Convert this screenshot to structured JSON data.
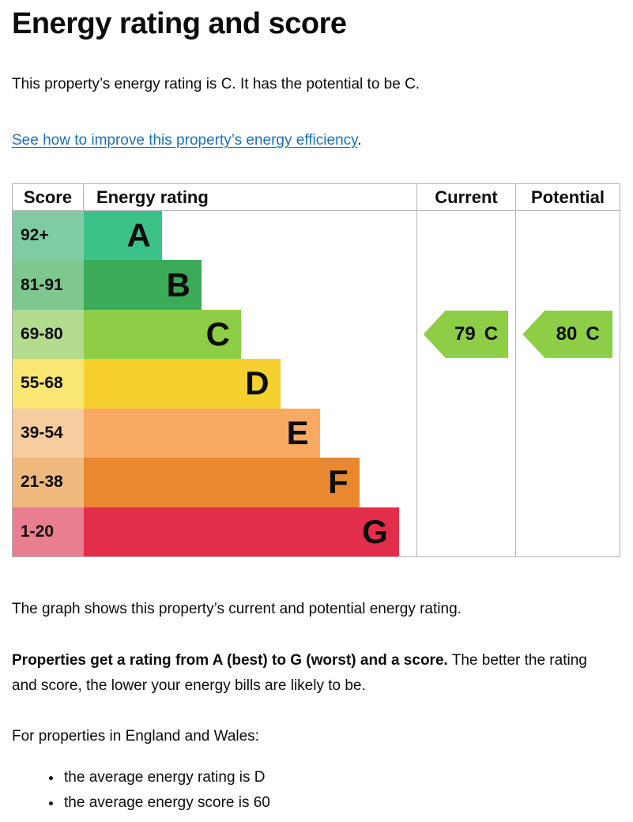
{
  "page": {
    "title": "Energy rating and score",
    "intro": "This property’s energy rating is C. It has the potential to be C.",
    "improve_link": "See how to improve this property’s energy efficiency",
    "improve_link_suffix": ".",
    "graph_caption": "The graph shows this property’s current and potential energy rating.",
    "explain_bold": "Properties get a rating from A (best) to G (worst) and a score.",
    "explain_rest": " The better the rating and score, the lower your energy bills are likely to be.",
    "averages_intro": "For properties in England and Wales:",
    "bullets": [
      "the average energy rating is D",
      "the average energy score is 60"
    ]
  },
  "chart": {
    "headers": {
      "score": "Score",
      "rating": "Energy rating",
      "current": "Current",
      "potential": "Potential"
    },
    "bands": [
      {
        "range": "92+",
        "letter": "A",
        "bar_color": "#3cc288",
        "score_color": "#7fcba4",
        "width_pct": 23.5
      },
      {
        "range": "81-91",
        "letter": "B",
        "bar_color": "#3bab57",
        "score_color": "#7ec890",
        "width_pct": 35.4
      },
      {
        "range": "69-80",
        "letter": "C",
        "bar_color": "#8dce46",
        "score_color": "#b4dc8e",
        "width_pct": 47.3
      },
      {
        "range": "55-68",
        "letter": "D",
        "bar_color": "#f5d02f",
        "score_color": "#f9e673",
        "width_pct": 59.1
      },
      {
        "range": "39-54",
        "letter": "E",
        "bar_color": "#f8aa62",
        "score_color": "#f7cda0",
        "width_pct": 71.0
      },
      {
        "range": "21-38",
        "letter": "F",
        "bar_color": "#e9882e",
        "score_color": "#efb97e",
        "width_pct": 82.9
      },
      {
        "range": "1-20",
        "letter": "G",
        "bar_color": "#e22d4b",
        "score_color": "#e87e90",
        "width_pct": 94.8
      }
    ],
    "current": {
      "value": "79",
      "letter": "C",
      "color": "#8dce46",
      "band_index": 2
    },
    "potential": {
      "value": "80",
      "letter": "C",
      "color": "#8dce46",
      "band_index": 2
    }
  },
  "colors": {
    "link_blue": "#1d70b8",
    "border_grey": "#b1b4b6",
    "text_black": "#0b0c0c"
  },
  "chart_data": {
    "type": "bar",
    "title": "Energy rating and score",
    "orientation": "horizontal",
    "columns": [
      "Score",
      "Energy rating",
      "Current",
      "Potential"
    ],
    "categories": [
      "A",
      "B",
      "C",
      "D",
      "E",
      "F",
      "G"
    ],
    "score_ranges": [
      "92+",
      "81-91",
      "69-80",
      "55-68",
      "39-54",
      "21-38",
      "1-20"
    ],
    "bar_lengths_relative": [
      1,
      2,
      3,
      4,
      5,
      6,
      7
    ],
    "band_colors": [
      "#3cc288",
      "#3bab57",
      "#8dce46",
      "#f5d02f",
      "#f8aa62",
      "#e9882e",
      "#e22d4b"
    ],
    "current": {
      "score": 79,
      "rating": "C"
    },
    "potential": {
      "score": 80,
      "rating": "C"
    },
    "notes": "Stepped EPC band chart; current and potential markers are left-pointing arrows aligned with band C"
  }
}
